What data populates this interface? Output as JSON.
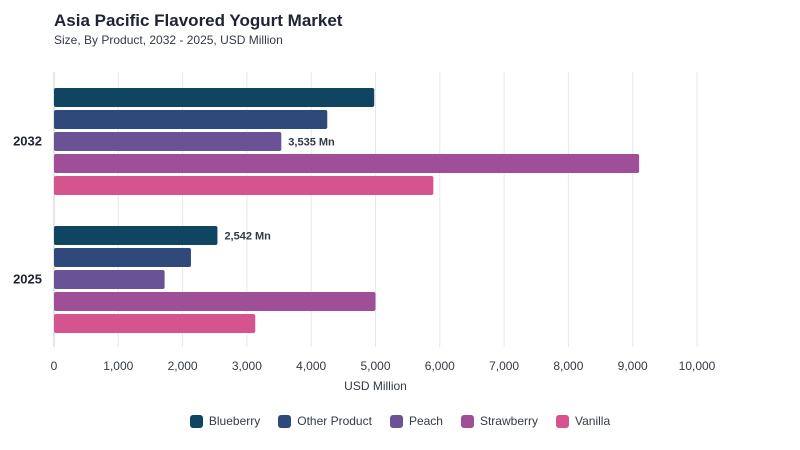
{
  "title": "Asia Pacific Flavored Yogurt Market",
  "subtitle": "Size, By Product, 2032 - 2025, USD Million",
  "chart_data": {
    "type": "bar",
    "orientation": "horizontal",
    "title": "Asia Pacific Flavored Yogurt Market",
    "subtitle": "Size, By Product, 2032 - 2025, USD Million",
    "categories": [
      "2032",
      "2025"
    ],
    "xlabel": "USD Million",
    "ylabel": "",
    "xlim": [
      0,
      10000
    ],
    "xticks": [
      "0",
      "1,000",
      "2,000",
      "3,000",
      "4,000",
      "5,000",
      "6,000",
      "7,000",
      "8,000",
      "9,000",
      "10,000"
    ],
    "grid": true,
    "legend_position": "bottom",
    "series": [
      {
        "name": "Blueberry",
        "color": "#0f4560",
        "values": [
          4980,
          2542
        ]
      },
      {
        "name": "Other Product",
        "color": "#2f4a7a",
        "values": [
          4250,
          2130
        ]
      },
      {
        "name": "Peach",
        "color": "#6a5296",
        "values": [
          3535,
          1720
        ]
      },
      {
        "name": "Strawberry",
        "color": "#9e4f98",
        "values": [
          9100,
          5000
        ]
      },
      {
        "name": "Vanilla",
        "color": "#d6548d",
        "values": [
          5900,
          3130
        ]
      }
    ],
    "data_labels": [
      {
        "category": "2032",
        "series": "Peach",
        "text": "3,535 Mn"
      },
      {
        "category": "2025",
        "series": "Blueberry",
        "text": "2,542 Mn"
      }
    ]
  }
}
